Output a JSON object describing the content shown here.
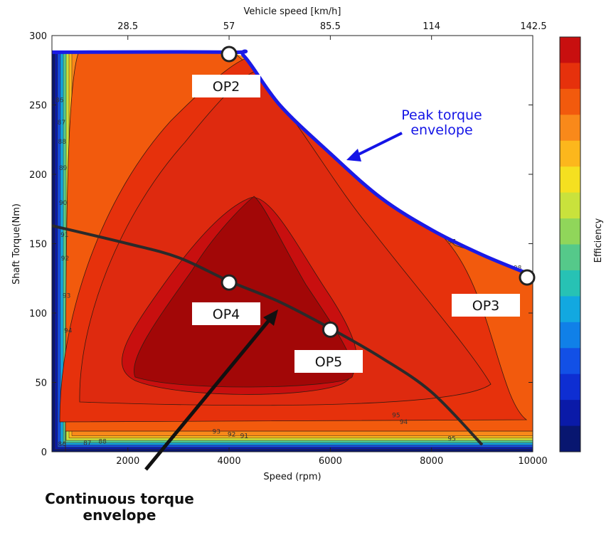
{
  "chart_data": {
    "type": "contour",
    "xlabel": "Speed (rpm)",
    "ylabel": "Shaft Torque(Nm)",
    "x2label": "Vehicle speed [km/h]",
    "colorbar_label": "Efficiency",
    "xlim": [
      500,
      10000
    ],
    "ylim": [
      0,
      300
    ],
    "x_ticks": [
      2000,
      4000,
      6000,
      8000,
      10000
    ],
    "y_ticks": [
      0,
      50,
      100,
      150,
      200,
      250,
      300
    ],
    "x2_ticks": [
      {
        "rpm": 2000,
        "label": "28.5"
      },
      {
        "rpm": 4000,
        "label": "57"
      },
      {
        "rpm": 6000,
        "label": "85.5"
      },
      {
        "rpm": 8000,
        "label": "114"
      },
      {
        "rpm": 10000,
        "label": "142.5"
      }
    ],
    "colorbar_colors": [
      "#c80f0f",
      "#e6310c",
      "#f25a0d",
      "#f9891a",
      "#fcb71c",
      "#f5e020",
      "#c9e23c",
      "#90d65a",
      "#55c98a",
      "#27c2b4",
      "#12a8e0",
      "#1080e8",
      "#1250e6",
      "#0e2ed2",
      "#0a1aa8",
      "#081670"
    ],
    "peak_torque_envelope": [
      [
        500,
        288
      ],
      [
        4000,
        288
      ],
      [
        4300,
        285
      ],
      [
        5000,
        250
      ],
      [
        6000,
        215
      ],
      [
        7000,
        183
      ],
      [
        8000,
        160
      ],
      [
        9000,
        142
      ],
      [
        10000,
        127
      ]
    ],
    "continuous_torque_envelope": [
      [
        500,
        163
      ],
      [
        2000,
        150
      ],
      [
        3000,
        140
      ],
      [
        4000,
        123
      ],
      [
        5000,
        108
      ],
      [
        6000,
        89
      ],
      [
        7000,
        68
      ],
      [
        8000,
        43
      ],
      [
        9000,
        5
      ]
    ],
    "operating_points": [
      {
        "name": "OP2",
        "rpm": 4000,
        "torque": 288
      },
      {
        "name": "OP3",
        "rpm": 10000,
        "torque": 127
      },
      {
        "name": "OP4",
        "rpm": 4000,
        "torque": 122
      },
      {
        "name": "OP5",
        "rpm": 6000,
        "torque": 88
      }
    ],
    "contour_labels": [
      {
        "text": "86",
        "rpm": 650,
        "torque": 252
      },
      {
        "text": "87",
        "rpm": 690,
        "torque": 236
      },
      {
        "text": "88",
        "rpm": 700,
        "torque": 222
      },
      {
        "text": "89",
        "rpm": 720,
        "torque": 203
      },
      {
        "text": "90",
        "rpm": 720,
        "torque": 178
      },
      {
        "text": "91",
        "rpm": 750,
        "torque": 155
      },
      {
        "text": "92",
        "rpm": 760,
        "torque": 138
      },
      {
        "text": "93",
        "rpm": 790,
        "torque": 111
      },
      {
        "text": "94",
        "rpm": 820,
        "torque": 86
      },
      {
        "text": "95",
        "rpm": 7300,
        "torque": 25
      },
      {
        "text": "94",
        "rpm": 7450,
        "torque": 20
      },
      {
        "text": "93",
        "rpm": 3750,
        "torque": 13
      },
      {
        "text": "92",
        "rpm": 4050,
        "torque": 11
      },
      {
        "text": "91",
        "rpm": 4300,
        "torque": 10
      },
      {
        "text": "88",
        "rpm": 1500,
        "torque": 6
      },
      {
        "text": "87",
        "rpm": 1200,
        "torque": 5
      },
      {
        "text": "86",
        "rpm": 700,
        "torque": 4
      },
      {
        "text": "95",
        "rpm": 8400,
        "torque": 8
      },
      {
        "text": "97",
        "rpm": 8400,
        "torque": 150
      },
      {
        "text": "98",
        "rpm": 9700,
        "torque": 131
      }
    ],
    "annotations": {
      "peak": [
        "Peak torque",
        "envelope"
      ],
      "continuous": [
        "Continuous torque",
        "envelope"
      ]
    }
  }
}
